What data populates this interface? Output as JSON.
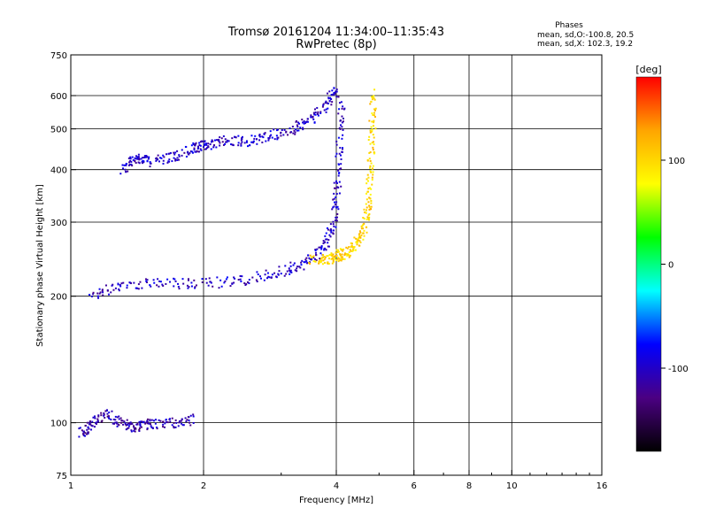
{
  "chart_data": {
    "type": "scatter",
    "title": "Tromsø 20161204 11:34:00–11:35:43",
    "subtitle": "RwPretec (8p)",
    "stats": {
      "heading": "Phases",
      "line1": "mean, sd,O:-100.8, 20.5",
      "line2": "mean, sd,X: 102.3, 19.2"
    },
    "xlabel": "Frequency [MHz]",
    "ylabel": "Stationary phase Virtual Height [km]",
    "xscale": "log",
    "yscale": "log",
    "xlim": [
      1,
      16
    ],
    "ylim": [
      75,
      750
    ],
    "x_ticks": [
      1,
      2,
      4,
      6,
      8,
      10,
      16
    ],
    "y_ticks": [
      75,
      100,
      200,
      300,
      400,
      500,
      600,
      750
    ],
    "x_gridlines": [
      2,
      4,
      6,
      8,
      10
    ],
    "y_gridlines": [
      100,
      200,
      300,
      400,
      500,
      600
    ],
    "grid": true,
    "colorbar": {
      "label": "[deg]",
      "min": -180,
      "max": 180,
      "ticks": [
        100,
        0,
        -100
      ],
      "colors": [
        "#000000",
        "#4b0082",
        "#0000ff",
        "#00ffff",
        "#00ff00",
        "#ffff00",
        "#ffa500",
        "#ff0000"
      ]
    },
    "traces": [
      {
        "name_hint": "O-mode F-layer trace",
        "points": [
          [
            1.3,
            400
          ],
          [
            1.4,
            430
          ],
          [
            1.5,
            420
          ],
          [
            1.7,
            430
          ],
          [
            1.9,
            450
          ],
          [
            2.0,
            460
          ],
          [
            2.2,
            470
          ],
          [
            2.5,
            470
          ],
          [
            2.8,
            480
          ],
          [
            3.2,
            500
          ],
          [
            3.5,
            530
          ],
          [
            3.8,
            580
          ],
          [
            4.0,
            630
          ]
        ],
        "phase": -100
      },
      {
        "name_hint": "O-mode lower trace",
        "points": [
          [
            1.1,
            200
          ],
          [
            1.3,
            215
          ],
          [
            1.6,
            215
          ],
          [
            2.0,
            215
          ],
          [
            2.5,
            220
          ],
          [
            3.0,
            230
          ],
          [
            3.4,
            240
          ],
          [
            3.7,
            260
          ],
          [
            3.9,
            290
          ],
          [
            4.0,
            350
          ],
          [
            4.05,
            450
          ],
          [
            4.1,
            600
          ]
        ],
        "phase": -100
      },
      {
        "name_hint": "X-mode trace",
        "points": [
          [
            3.5,
            245
          ],
          [
            3.8,
            245
          ],
          [
            4.0,
            250
          ],
          [
            4.2,
            255
          ],
          [
            4.4,
            265
          ],
          [
            4.6,
            290
          ],
          [
            4.7,
            330
          ],
          [
            4.75,
            400
          ],
          [
            4.8,
            500
          ],
          [
            4.85,
            620
          ]
        ],
        "phase": 100
      },
      {
        "name_hint": "E-layer trace",
        "points": [
          [
            1.05,
            95
          ],
          [
            1.1,
            100
          ],
          [
            1.2,
            105
          ],
          [
            1.3,
            100
          ],
          [
            1.4,
            98
          ],
          [
            1.5,
            100
          ],
          [
            1.7,
            100
          ],
          [
            1.9,
            103
          ]
        ],
        "phase": -110
      }
    ]
  }
}
